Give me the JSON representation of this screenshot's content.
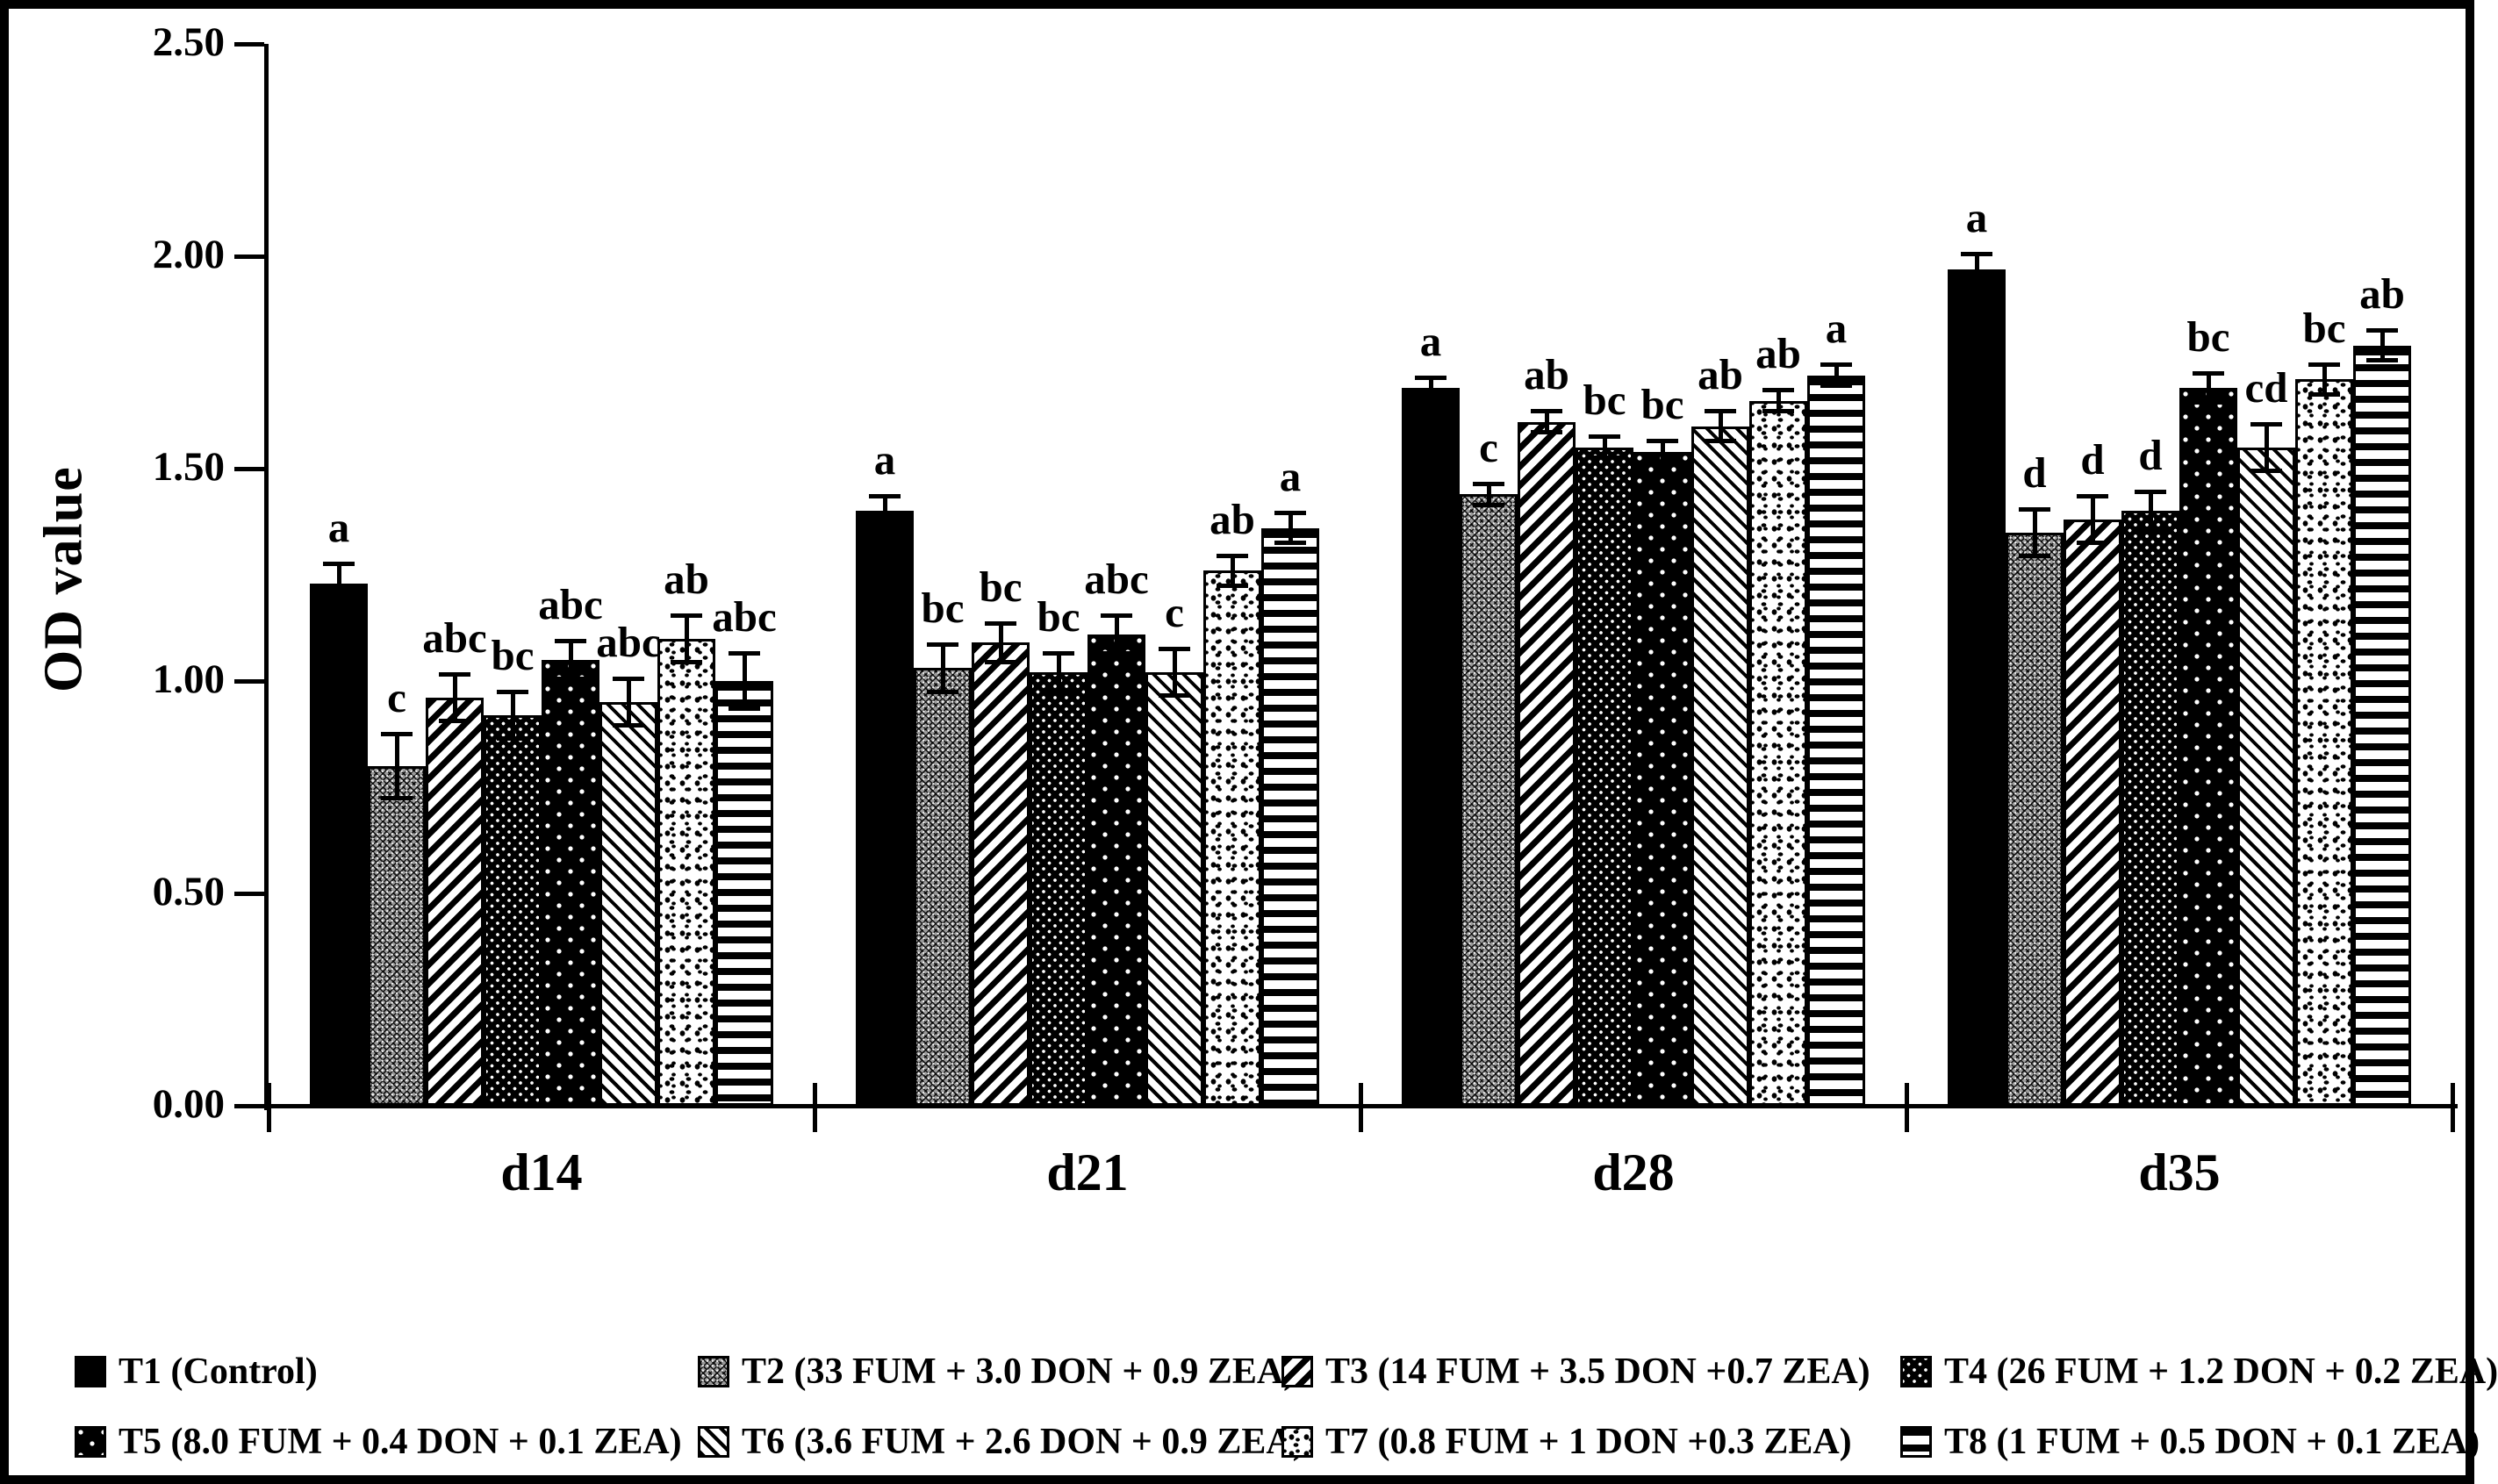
{
  "figure": {
    "ylabel": "OD value"
  },
  "colors": {
    "ink": "#000000",
    "paper": "#ffffff",
    "t2_gray": "#9b9b9b"
  },
  "chart_data": {
    "type": "bar",
    "title": "",
    "xlabel": "",
    "ylabel": "OD value",
    "ylim": [
      0,
      2.5
    ],
    "ytick_labels": [
      "0.00",
      "0.50",
      "1.00",
      "1.50",
      "2.00",
      "2.50"
    ],
    "grid": false,
    "legend_position": "bottom",
    "error_bars": true,
    "significance_letters": true,
    "categories": [
      "d14",
      "d21",
      "d28",
      "d35"
    ],
    "series": [
      {
        "name": "T1 (Control)",
        "pattern": "solid-black",
        "values": [
          1.23,
          1.4,
          1.69,
          1.97
        ],
        "errors": [
          0.05,
          0.04,
          0.03,
          0.04
        ],
        "letters": [
          "a",
          "a",
          "a",
          "a"
        ]
      },
      {
        "name": "T2 (33 FUM + 3.0 DON + 0.9 ZEA)",
        "pattern": "gray-weave",
        "values": [
          0.8,
          1.03,
          1.44,
          1.35
        ],
        "errors": [
          0.08,
          0.06,
          0.03,
          0.06
        ],
        "letters": [
          "c",
          "bc",
          "c",
          "d"
        ]
      },
      {
        "name": "T3 (14 FUM + 3.5 DON +0.7 ZEA)",
        "pattern": "diagonal-up-stripes",
        "values": [
          0.96,
          1.09,
          1.61,
          1.38
        ],
        "errors": [
          0.06,
          0.05,
          0.03,
          0.06
        ],
        "letters": [
          "abc",
          "bc",
          "ab",
          "d"
        ]
      },
      {
        "name": "T4 (26 FUM + 1.2 DON + 0.2 ZEA)",
        "pattern": "black-dense-white-dots",
        "values": [
          0.92,
          1.02,
          1.55,
          1.4
        ],
        "errors": [
          0.06,
          0.05,
          0.03,
          0.05
        ],
        "letters": [
          "bc",
          "bc",
          "bc",
          "d"
        ]
      },
      {
        "name": "T5 (8.0 FUM + 0.4 DON + 0.1 ZEA)",
        "pattern": "black-sparse-white-dots",
        "values": [
          1.05,
          1.11,
          1.54,
          1.69
        ],
        "errors": [
          0.05,
          0.05,
          0.03,
          0.04
        ],
        "letters": [
          "abc",
          "abc",
          "bc",
          "bc"
        ]
      },
      {
        "name": "T6 (3.6 FUM + 2.6 DON + 0.9 ZEA)",
        "pattern": "diagonal-down-thin-stripes",
        "values": [
          0.95,
          1.02,
          1.6,
          1.55
        ],
        "errors": [
          0.06,
          0.06,
          0.04,
          0.06
        ],
        "letters": [
          "abc",
          "c",
          "ab",
          "cd"
        ]
      },
      {
        "name": "T7 (0.8 FUM + 1 DON +0.3 ZEA)",
        "pattern": "white-black-speckle",
        "values": [
          1.1,
          1.26,
          1.66,
          1.71
        ],
        "errors": [
          0.06,
          0.04,
          0.03,
          0.04
        ],
        "letters": [
          "ab",
          "ab",
          "ab",
          "bc"
        ]
      },
      {
        "name": "T8 (1 FUM + 0.5 DON + 0.1 ZEA)",
        "pattern": "horizontal-stripes",
        "values": [
          1.0,
          1.36,
          1.72,
          1.79
        ],
        "errors": [
          0.07,
          0.04,
          0.03,
          0.04
        ],
        "letters": [
          "abc",
          "a",
          "a",
          "ab"
        ]
      }
    ]
  }
}
